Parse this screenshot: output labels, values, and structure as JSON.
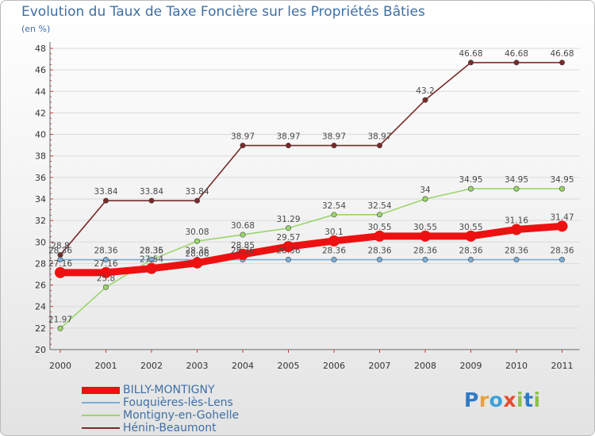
{
  "title": "Evolution du Taux de Taxe Foncière sur les Propriétés Bâties",
  "unit_label": "(en %)",
  "logo": {
    "letters": [
      {
        "ch": "P",
        "color": "#2e7bc4"
      },
      {
        "ch": "r",
        "color": "#e8a33a"
      },
      {
        "ch": "o",
        "color": "#3aa2d8"
      },
      {
        "ch": "x",
        "color": "#e64b2d"
      },
      {
        "ch": "i",
        "color": "#8bc34a"
      },
      {
        "ch": "t",
        "color": "#2e7bc4"
      },
      {
        "ch": "i",
        "color": "#8bc34a"
      }
    ]
  },
  "chart_data": {
    "type": "line",
    "title": "Evolution du Taux de Taxe Foncière sur les Propriétés Bâties",
    "ylabel": "(en %)",
    "xlabel": "",
    "categories": [
      "2000",
      "2001",
      "2002",
      "2003",
      "2004",
      "2005",
      "2006",
      "2007",
      "2008",
      "2009",
      "2010",
      "2011"
    ],
    "ylim": [
      20,
      48
    ],
    "yticks": [
      20,
      22,
      24,
      26,
      28,
      30,
      32,
      34,
      36,
      38,
      40,
      42,
      44,
      46,
      48
    ],
    "grid": "horizontal",
    "legend_position": "bottom-left",
    "series": [
      {
        "name": "Hénin-Beaumont",
        "color": "#7a2a2a",
        "width": "thin",
        "values": [
          28.8,
          33.84,
          33.84,
          33.84,
          38.97,
          38.97,
          38.97,
          38.97,
          43.2,
          46.68,
          46.68,
          46.68
        ],
        "labels": [
          "28.8",
          "33.84",
          "33.84",
          "33.84",
          "38.97",
          "38.97",
          "38.97",
          "38.97",
          "43.2",
          "46.68",
          "46.68",
          "46.68"
        ]
      },
      {
        "name": "Montigny-en-Gohelle",
        "color": "#9ad66c",
        "width": "thin",
        "values": [
          21.97,
          25.8,
          28.35,
          30.08,
          30.68,
          31.29,
          32.54,
          32.54,
          34,
          34.95,
          34.95,
          34.95
        ],
        "labels": [
          "21.97",
          "25.8",
          "28.35",
          "30.08",
          "30.68",
          "31.29",
          "32.54",
          "32.54",
          "34",
          "34.95",
          "34.95",
          "34.95"
        ]
      },
      {
        "name": "Fouquières-lès-Lens",
        "color": "#7aaed6",
        "width": "thin",
        "values": [
          28.36,
          28.36,
          28.36,
          28.36,
          28.36,
          28.36,
          28.36,
          28.36,
          28.36,
          28.36,
          28.36,
          28.36
        ],
        "labels": [
          "28.36",
          "28.36",
          "28.36",
          "28.36",
          "28.36",
          "28.36",
          "28.36",
          "28.36",
          "28.36",
          "28.36",
          "28.36",
          "28.36"
        ]
      },
      {
        "name": "BILLY-MONTIGNY",
        "color": "#ee1111",
        "width": "thick",
        "values": [
          27.16,
          27.16,
          27.54,
          28.06,
          28.85,
          29.57,
          30.1,
          30.55,
          30.55,
          30.55,
          31.16,
          31.47
        ],
        "labels": [
          "27.16",
          "27.16",
          "27.54",
          "28.06",
          "28.85",
          "29.57",
          "30.1",
          "30.55",
          "30.55",
          "30.55",
          "31.16",
          "31.47"
        ]
      }
    ],
    "legend_order": [
      "BILLY-MONTIGNY",
      "Fouquières-lès-Lens",
      "Montigny-en-Gohelle",
      "Hénin-Beaumont"
    ]
  }
}
